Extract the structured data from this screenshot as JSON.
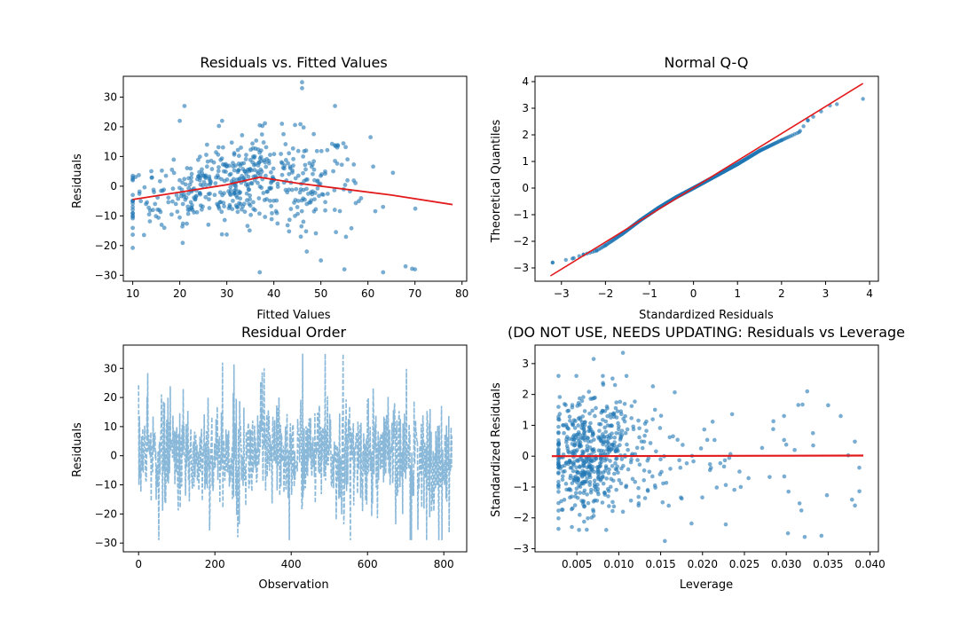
{
  "figure": {
    "background": "#ffffff",
    "point_color": "#1f77b4",
    "fit_color": "#e31a1c",
    "series_color": "#8ab8d9"
  },
  "chart_data": [
    {
      "type": "scatter",
      "title": "Residuals vs. Fitted Values",
      "xlabel": "Fitted Values",
      "ylabel": "Residuals",
      "xlim": [
        8,
        81
      ],
      "ylim": [
        -32,
        37
      ],
      "xticks": [
        10,
        20,
        30,
        40,
        50,
        60,
        70,
        80
      ],
      "yticks": [
        -30,
        -20,
        -10,
        0,
        10,
        20,
        30
      ],
      "grid": false,
      "n_points": 520,
      "x_range": [
        10,
        78
      ],
      "residual_spread_min": -29,
      "residual_spread_max": 35,
      "point_color": "#1f77b4",
      "point_alpha": 0.6,
      "fit_line": {
        "color": "#e31a1c",
        "x": [
          10,
          20,
          30,
          37,
          45,
          55,
          65,
          78
        ],
        "y": [
          -4.5,
          -2.0,
          0.5,
          3.0,
          1.0,
          -1.0,
          -3.0,
          -6.2
        ]
      },
      "outlier_points": [
        [
          46,
          35
        ],
        [
          46,
          33
        ],
        [
          53,
          27
        ],
        [
          21,
          27
        ],
        [
          20,
          22
        ],
        [
          29,
          22
        ],
        [
          37,
          20.5
        ],
        [
          68,
          -27
        ],
        [
          70,
          -28
        ],
        [
          55,
          -28
        ],
        [
          37,
          -29
        ],
        [
          50,
          -25
        ],
        [
          47,
          -22
        ]
      ]
    },
    {
      "type": "scatter",
      "title": "Normal Q-Q",
      "xlabel": "Standardized Residuals",
      "ylabel": "Theoretical Quantiles",
      "xlim": [
        -3.6,
        4.2
      ],
      "ylim": [
        -3.5,
        4.2
      ],
      "xticks": [
        -3,
        -2,
        -1,
        0,
        1,
        2,
        3,
        4
      ],
      "yticks": [
        -3,
        -2,
        -1,
        0,
        1,
        2,
        3,
        4
      ],
      "grid": false,
      "n_points": 520,
      "point_color": "#1f77b4",
      "reference_line": {
        "color": "#e31a1c",
        "x": [
          -3.25,
          3.85
        ],
        "y": [
          -3.3,
          3.93
        ]
      },
      "points_sample": [
        [
          -3.2,
          -2.8
        ],
        [
          -2.75,
          -2.65
        ],
        [
          -2.5,
          -2.5
        ],
        [
          -2.2,
          -2.35
        ],
        [
          -2.0,
          -2.15
        ],
        [
          -1.6,
          -1.7
        ],
        [
          -1.2,
          -1.2
        ],
        [
          -0.8,
          -0.75
        ],
        [
          -0.4,
          -0.35
        ],
        [
          0.0,
          0.0
        ],
        [
          0.5,
          0.45
        ],
        [
          1.0,
          0.9
        ],
        [
          1.5,
          1.4
        ],
        [
          2.0,
          1.8
        ],
        [
          2.4,
          2.1
        ],
        [
          2.6,
          2.55
        ],
        [
          3.1,
          3.1
        ],
        [
          3.85,
          3.35
        ]
      ]
    },
    {
      "type": "line",
      "title": "Residual Order",
      "xlabel": "Observation",
      "ylabel": "Residuals",
      "xlim": [
        -40,
        860
      ],
      "ylim": [
        -33,
        38
      ],
      "xticks": [
        0,
        200,
        400,
        600,
        800
      ],
      "yticks": [
        -30,
        -20,
        -10,
        0,
        10,
        20,
        30
      ],
      "grid": false,
      "n_observations": 822,
      "line_style": "dashed",
      "line_color": "#8ab8d9",
      "series_range": [
        -29,
        35
      ]
    },
    {
      "type": "scatter",
      "title": "(DO NOT USE, NEEDS UPDATING: Residuals vs Leverage",
      "xlabel": "Leverage",
      "ylabel": "Standardized Residuals",
      "xlim": [
        0.0,
        0.041
      ],
      "ylim": [
        -3.1,
        3.6
      ],
      "xticks": [
        0.005,
        0.01,
        0.015,
        0.02,
        0.025,
        0.03,
        0.035,
        0.04
      ],
      "xtick_labels": [
        "0.005",
        "0.010",
        "0.015",
        "0.020",
        "0.025",
        "0.030",
        "0.035",
        "0.040"
      ],
      "yticks": [
        -3,
        -2,
        -1,
        0,
        1,
        2,
        3
      ],
      "grid": false,
      "n_points": 620,
      "point_color": "#1f77b4",
      "fit_line": {
        "color": "#e31a1c",
        "x": [
          0.002,
          0.0392
        ],
        "y": [
          0.0,
          0.02
        ]
      },
      "outlier_points": [
        [
          0.0105,
          3.35
        ],
        [
          0.007,
          3.15
        ],
        [
          0.0325,
          2.1
        ],
        [
          0.0382,
          -1.6
        ],
        [
          0.0302,
          -2.5
        ],
        [
          0.0322,
          -2.62
        ],
        [
          0.0342,
          -2.58
        ],
        [
          0.0155,
          -2.75
        ],
        [
          0.035,
          1.65
        ],
        [
          0.0365,
          1.3
        ]
      ]
    }
  ]
}
